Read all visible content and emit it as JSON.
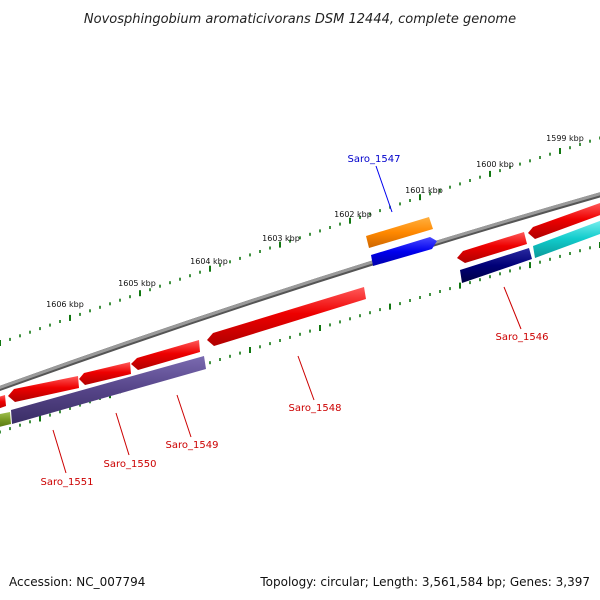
{
  "title": "Novosphingobium aromaticivorans DSM 12444, complete genome",
  "footer": {
    "accession": "Accession: NC_007794",
    "summary": "Topology: circular; Length: 3,561,584 bp; Genes: 3,397"
  },
  "scale_labels": [
    "1599 kbp",
    "1600 kbp",
    "1601 kbp",
    "1602 kbp",
    "1603 kbp",
    "1604 kbp",
    "1605 kbp",
    "1606 kbp"
  ],
  "gene_labels": [
    {
      "text": "Saro_1547",
      "color": "#0000cc"
    },
    {
      "text": "Saro_1546",
      "color": "#cc0000"
    },
    {
      "text": "Saro_1548",
      "color": "#cc0000"
    },
    {
      "text": "Saro_1549",
      "color": "#cc0000"
    },
    {
      "text": "Saro_1550",
      "color": "#cc0000"
    },
    {
      "text": "Saro_1551",
      "color": "#cc0000"
    }
  ],
  "colors": {
    "backbone": "#808080",
    "cds_forward": "#ee0000",
    "cds_reverse_purple": "#554488",
    "gene_orange": "#ff8800",
    "gene_blue": "#0000ee",
    "gene_navy": "#000077",
    "gene_cyan": "#11cccc",
    "gene_olive": "#779922",
    "tick": "#117711"
  }
}
